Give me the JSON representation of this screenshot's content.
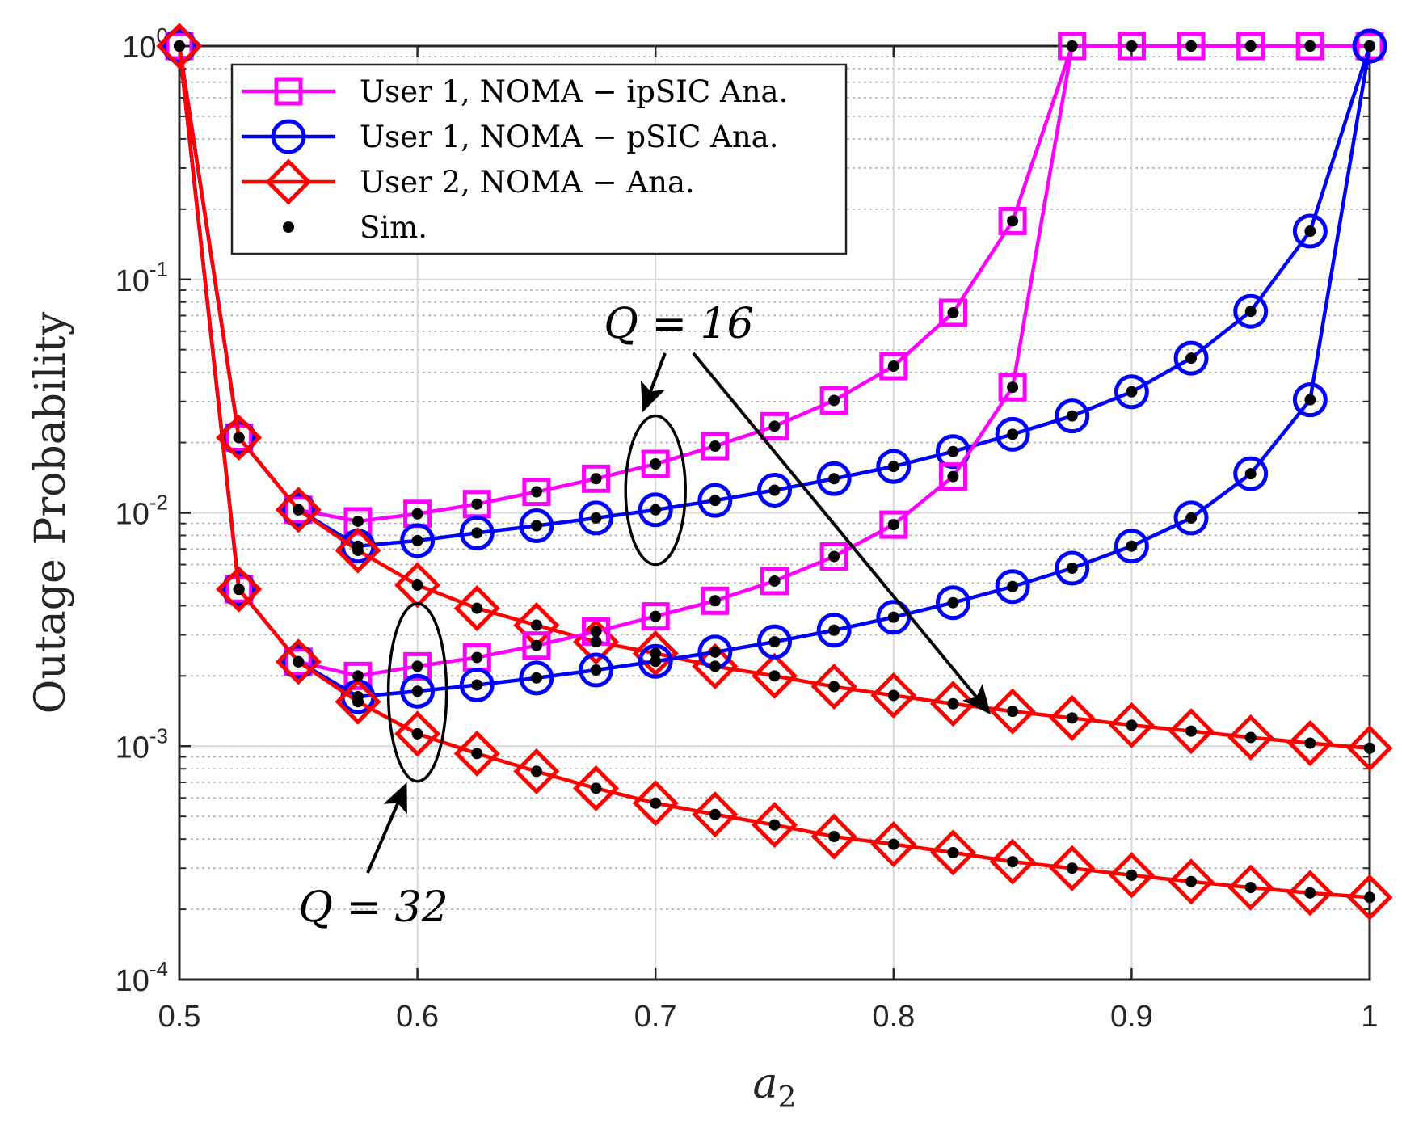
{
  "chart_data": {
    "type": "line",
    "title": "",
    "xlabel": "a_2",
    "ylabel": "Outage Probability",
    "xlim": [
      0.5,
      1
    ],
    "ylim": [
      0.0001,
      1
    ],
    "yscale": "log",
    "grid": true,
    "legend_position": "top-left",
    "xticks": [
      {
        "value": 0.5,
        "label": "0.5"
      },
      {
        "value": 0.6,
        "label": "0.6"
      },
      {
        "value": 0.7,
        "label": "0.7"
      },
      {
        "value": 0.8,
        "label": "0.8"
      },
      {
        "value": 0.9,
        "label": "0.9"
      },
      {
        "value": 1.0,
        "label": "1"
      }
    ],
    "yticks": [
      {
        "value": 1,
        "base": "10",
        "exp": "0"
      },
      {
        "value": 0.1,
        "base": "10",
        "exp": "-1"
      },
      {
        "value": 0.01,
        "base": "10",
        "exp": "-2"
      },
      {
        "value": 0.001,
        "base": "10",
        "exp": "-3"
      },
      {
        "value": 0.0001,
        "base": "10",
        "exp": "-4"
      }
    ],
    "legend": [
      {
        "label": "User 1, NOMA − ipSIC Ana.",
        "marker": "square",
        "color": "#ff00ff"
      },
      {
        "label": "User 1, NOMA − pSIC Ana.",
        "marker": "circle",
        "color": "#0000ff"
      },
      {
        "label": "User 2, NOMA − Ana.",
        "marker": "diamond",
        "color": "#ff0000"
      },
      {
        "label": "Sim.",
        "marker": "dot",
        "color": "#000000"
      }
    ],
    "x": [
      0.5,
      0.525,
      0.55,
      0.575,
      0.6,
      0.625,
      0.65,
      0.675,
      0.7,
      0.725,
      0.75,
      0.775,
      0.8,
      0.825,
      0.85,
      0.875,
      0.9,
      0.925,
      0.95,
      0.975,
      1.0
    ],
    "series": [
      {
        "group": "Q = 16",
        "marker": "square",
        "color": "#ff00ff",
        "values": [
          1,
          0.021,
          0.0103,
          0.0092,
          0.0099,
          0.0109,
          0.0123,
          0.014,
          0.0162,
          0.0193,
          0.0235,
          0.0303,
          0.0425,
          0.072,
          0.178,
          1,
          1,
          1,
          1,
          1,
          1
        ]
      },
      {
        "group": "Q = 16",
        "marker": "circle",
        "color": "#0000ff",
        "values": [
          1,
          0.021,
          0.0103,
          0.0072,
          0.0076,
          0.0082,
          0.0088,
          0.0095,
          0.0103,
          0.0113,
          0.0125,
          0.014,
          0.0158,
          0.0183,
          0.0217,
          0.026,
          0.033,
          0.046,
          0.073,
          0.161,
          1
        ]
      },
      {
        "group": "Q = 16",
        "marker": "diamond",
        "color": "#ff0000",
        "values": [
          1,
          0.021,
          0.0103,
          0.0069,
          0.0049,
          0.0039,
          0.0033,
          0.0028,
          0.0025,
          0.0022,
          0.002,
          0.0018,
          0.00165,
          0.00152,
          0.00141,
          0.00132,
          0.00123,
          0.00116,
          0.00109,
          0.00103,
          0.00098
        ]
      },
      {
        "group": "Q = 32",
        "marker": "square",
        "color": "#ff00ff",
        "values": [
          1,
          0.0047,
          0.0023,
          0.002,
          0.0022,
          0.0024,
          0.0027,
          0.0031,
          0.0036,
          0.0042,
          0.0051,
          0.0065,
          0.0089,
          0.0143,
          0.0345,
          1,
          1,
          1,
          1,
          1,
          1
        ]
      },
      {
        "group": "Q = 32",
        "marker": "circle",
        "color": "#0000ff",
        "values": [
          1,
          0.0047,
          0.0023,
          0.00163,
          0.00172,
          0.00183,
          0.00196,
          0.00212,
          0.00231,
          0.00253,
          0.0028,
          0.00314,
          0.00357,
          0.00412,
          0.00483,
          0.00579,
          0.0072,
          0.0095,
          0.0147,
          0.0305,
          1
        ]
      },
      {
        "group": "Q = 32",
        "marker": "diamond",
        "color": "#ff0000",
        "values": [
          1,
          0.0047,
          0.0023,
          0.00155,
          0.00113,
          0.00093,
          0.00078,
          0.00066,
          0.00057,
          0.00051,
          0.00046,
          0.00041,
          0.00038,
          0.00035,
          0.00032,
          0.0003,
          0.00028,
          0.000263,
          0.000248,
          0.000235,
          0.000225
        ]
      }
    ],
    "annotations": [
      {
        "text": "Q = 16",
        "ellipse_center": {
          "x": 0.7,
          "y": 0.0125
        },
        "arrow_to_ellipse_target": {
          "x": 0.695,
          "y": 0.02
        },
        "arrow_to_curves_target": {
          "x": 0.84,
          "y": 0.0014
        }
      },
      {
        "text": "Q = 32",
        "ellipse_center": {
          "x": 0.6,
          "y": 0.0017
        },
        "arrow_target": {
          "x": 0.595,
          "y": 0.00058
        }
      }
    ]
  }
}
